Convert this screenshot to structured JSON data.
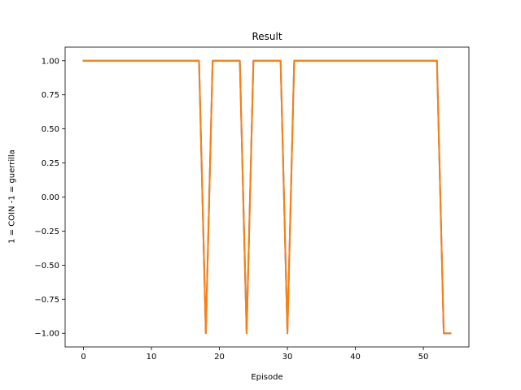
{
  "chart_data": {
    "type": "line",
    "title": "Result",
    "xlabel": "Episode",
    "ylabel": "1 = COIN -1 = guerrilla",
    "xlim": [
      -2.7,
      56.7
    ],
    "ylim": [
      -1.1,
      1.1
    ],
    "x_ticks": [
      0,
      10,
      20,
      30,
      40,
      50
    ],
    "y_ticks": [
      -1.0,
      -0.75,
      -0.5,
      -0.25,
      0.0,
      0.25,
      0.5,
      0.75,
      1.0
    ],
    "x_tick_labels": [
      "0",
      "10",
      "20",
      "30",
      "40",
      "50"
    ],
    "y_tick_labels": [
      "−1.00",
      "−0.75",
      "−0.50",
      "−0.25",
      "0.00",
      "0.25",
      "0.50",
      "0.75",
      "1.00"
    ],
    "grid": false,
    "legend": "none",
    "series": [
      {
        "color": "#1f77b4",
        "x": [
          0,
          1,
          2,
          3,
          4,
          5,
          6,
          7,
          8,
          9,
          10,
          11,
          12,
          13,
          14,
          15,
          16,
          17,
          18,
          19,
          20,
          21,
          22,
          23,
          24,
          25,
          26,
          27,
          28,
          29,
          30,
          31,
          32,
          33,
          34,
          35,
          36,
          37,
          38,
          39,
          40,
          41,
          42,
          43,
          44,
          45,
          46,
          47,
          48,
          49,
          50,
          51,
          52,
          53,
          54
        ],
        "values": [
          1,
          1,
          1,
          1,
          1,
          1,
          1,
          1,
          1,
          1,
          1,
          1,
          1,
          1,
          1,
          1,
          1,
          1,
          -1,
          1,
          1,
          1,
          1,
          1,
          -1,
          1,
          1,
          1,
          1,
          1,
          -1,
          1,
          1,
          1,
          1,
          1,
          1,
          1,
          1,
          1,
          1,
          1,
          1,
          1,
          1,
          1,
          1,
          1,
          1,
          1,
          1,
          1,
          1,
          -1,
          -1
        ]
      },
      {
        "color": "#ff7f0e",
        "x": [
          0,
          1,
          2,
          3,
          4,
          5,
          6,
          7,
          8,
          9,
          10,
          11,
          12,
          13,
          14,
          15,
          16,
          17,
          18,
          19,
          20,
          21,
          22,
          23,
          24,
          25,
          26,
          27,
          28,
          29,
          30,
          31,
          32,
          33,
          34,
          35,
          36,
          37,
          38,
          39,
          40,
          41,
          42,
          43,
          44,
          45,
          46,
          47,
          48,
          49,
          50,
          51,
          52,
          53,
          54
        ],
        "values": [
          1,
          1,
          1,
          1,
          1,
          1,
          1,
          1,
          1,
          1,
          1,
          1,
          1,
          1,
          1,
          1,
          1,
          1,
          -1,
          1,
          1,
          1,
          1,
          1,
          -1,
          1,
          1,
          1,
          1,
          1,
          -1,
          1,
          1,
          1,
          1,
          1,
          1,
          1,
          1,
          1,
          1,
          1,
          1,
          1,
          1,
          1,
          1,
          1,
          1,
          1,
          1,
          1,
          1,
          -1,
          -1
        ]
      }
    ]
  }
}
